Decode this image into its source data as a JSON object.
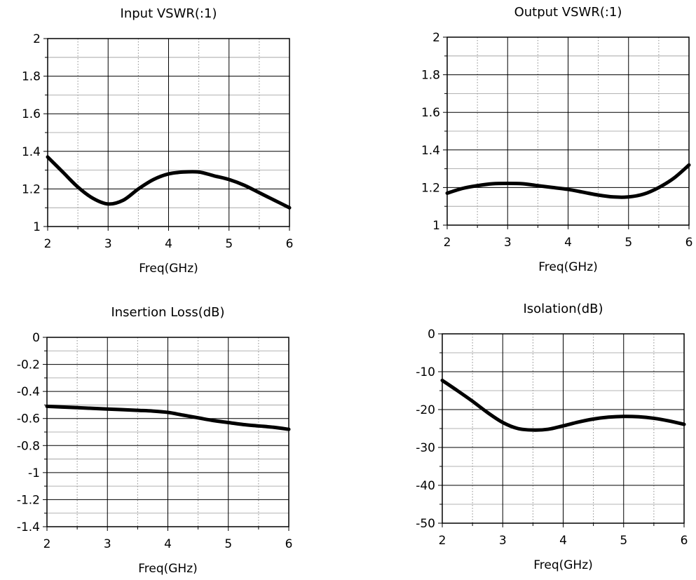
{
  "chart_data": [
    {
      "type": "line",
      "title": "Input VSWR(:1)",
      "xlabel": "Freq(GHz)",
      "ylabel": "",
      "xlim": [
        2,
        6
      ],
      "ylim": [
        1,
        2
      ],
      "xticks": [
        2,
        3,
        4,
        5,
        6
      ],
      "yticks": [
        1,
        1.2,
        1.4,
        1.6,
        1.8,
        2
      ],
      "xtick_labels": [
        "2",
        "3",
        "4",
        "5",
        "6"
      ],
      "ytick_labels": [
        "1",
        "1.2",
        "1.4",
        "1.6",
        "1.8",
        "2"
      ],
      "grid": true,
      "series": [
        {
          "x": [
            2.0,
            2.25,
            2.5,
            2.75,
            3.0,
            3.25,
            3.5,
            3.75,
            4.0,
            4.25,
            4.5,
            4.75,
            5.0,
            5.25,
            5.5,
            5.75,
            6.0
          ],
          "y": [
            1.37,
            1.29,
            1.21,
            1.15,
            1.12,
            1.14,
            1.2,
            1.25,
            1.28,
            1.29,
            1.29,
            1.27,
            1.25,
            1.22,
            1.18,
            1.14,
            1.1
          ]
        }
      ]
    },
    {
      "type": "line",
      "title": "Output VSWR(:1)",
      "xlabel": "Freq(GHz)",
      "ylabel": "",
      "xlim": [
        2,
        6
      ],
      "ylim": [
        1,
        2
      ],
      "xticks": [
        2,
        3,
        4,
        5,
        6
      ],
      "yticks": [
        1,
        1.2,
        1.4,
        1.6,
        1.8,
        2
      ],
      "xtick_labels": [
        "2",
        "3",
        "4",
        "5",
        "6"
      ],
      "ytick_labels": [
        "1",
        "1.2",
        "1.4",
        "1.6",
        "1.8",
        "2"
      ],
      "grid": true,
      "series": [
        {
          "x": [
            2.0,
            2.25,
            2.5,
            2.75,
            3.0,
            3.25,
            3.5,
            3.75,
            4.0,
            4.25,
            4.5,
            4.75,
            5.0,
            5.25,
            5.5,
            5.75,
            6.0
          ],
          "y": [
            1.17,
            1.195,
            1.21,
            1.22,
            1.222,
            1.22,
            1.21,
            1.2,
            1.19,
            1.175,
            1.16,
            1.15,
            1.15,
            1.165,
            1.2,
            1.25,
            1.32
          ]
        }
      ]
    },
    {
      "type": "line",
      "title": "Insertion Loss(dB)",
      "xlabel": "Freq(GHz)",
      "ylabel": "",
      "xlim": [
        2,
        6
      ],
      "ylim": [
        -1.4,
        0
      ],
      "xticks": [
        2,
        3,
        4,
        5,
        6
      ],
      "yticks": [
        -1.4,
        -1.2,
        -1,
        -0.8,
        -0.6,
        -0.4,
        -0.2,
        0
      ],
      "xtick_labels": [
        "2",
        "3",
        "4",
        "5",
        "6"
      ],
      "ytick_labels": [
        "-1.4",
        "-1.2",
        "-1",
        "-0.8",
        "-0.6",
        "-0.4",
        "-0.2",
        "0"
      ],
      "grid": true,
      "series": [
        {
          "x": [
            2.0,
            2.25,
            2.5,
            2.75,
            3.0,
            3.25,
            3.5,
            3.75,
            4.0,
            4.25,
            4.5,
            4.75,
            5.0,
            5.25,
            5.5,
            5.75,
            6.0
          ],
          "y": [
            -0.51,
            -0.515,
            -0.52,
            -0.525,
            -0.53,
            -0.535,
            -0.54,
            -0.545,
            -0.555,
            -0.575,
            -0.595,
            -0.615,
            -0.63,
            -0.645,
            -0.655,
            -0.665,
            -0.68
          ]
        }
      ]
    },
    {
      "type": "line",
      "title": "Isolation(dB)",
      "xlabel": "Freq(GHz)",
      "ylabel": "",
      "xlim": [
        2,
        6
      ],
      "ylim": [
        -50,
        0
      ],
      "xticks": [
        2,
        3,
        4,
        5,
        6
      ],
      "yticks": [
        -50,
        -40,
        -30,
        -20,
        -10,
        0
      ],
      "xtick_labels": [
        "2",
        "3",
        "4",
        "5",
        "6"
      ],
      "ytick_labels": [
        "-50",
        "-40",
        "-30",
        "-20",
        "-10",
        "0"
      ],
      "grid": true,
      "series": [
        {
          "x": [
            2.0,
            2.25,
            2.5,
            2.75,
            3.0,
            3.25,
            3.5,
            3.75,
            4.0,
            4.25,
            4.5,
            4.75,
            5.0,
            5.25,
            5.5,
            5.75,
            6.0
          ],
          "y": [
            -12.3,
            -15.0,
            -17.8,
            -20.8,
            -23.4,
            -25.0,
            -25.4,
            -25.2,
            -24.3,
            -23.3,
            -22.5,
            -22.0,
            -21.8,
            -21.9,
            -22.3,
            -23.0,
            -23.9
          ]
        }
      ]
    }
  ],
  "style": {
    "line_color": "#000000",
    "grid_color": "#000000",
    "minor_grid_color": "#9a9a9a",
    "background": "#ffffff"
  }
}
